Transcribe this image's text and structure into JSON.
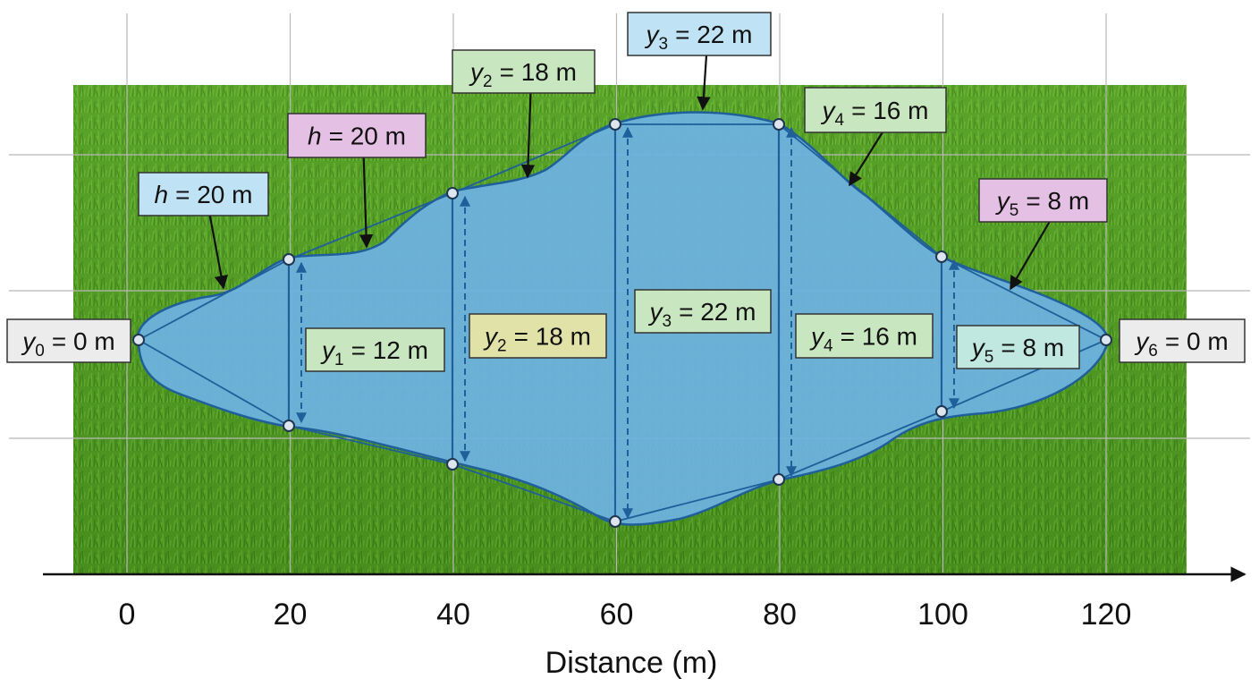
{
  "x_axis": {
    "label": "Distance (m)",
    "ticks": [
      0,
      20,
      40,
      60,
      80,
      100,
      120
    ]
  },
  "callouts": [
    {
      "symbol": "y",
      "subscript": "0",
      "text": "= 0 m"
    },
    {
      "symbol": "y",
      "subscript": "6",
      "text": "= 0 m"
    },
    {
      "symbol": "h",
      "text": "= 20 m"
    },
    {
      "symbol": "h",
      "text": "= 20 m"
    },
    {
      "symbol": "y",
      "subscript": "2",
      "text": "= 18 m"
    },
    {
      "symbol": "y",
      "subscript": "3",
      "text": "= 22 m"
    },
    {
      "symbol": "y",
      "subscript": "4",
      "text": "= 16 m"
    },
    {
      "symbol": "y",
      "subscript": "5",
      "text": "= 8 m"
    },
    {
      "symbol": "y",
      "subscript": "1",
      "text": "= 12 m"
    },
    {
      "symbol": "y",
      "subscript": "2",
      "text": "= 18 m"
    },
    {
      "symbol": "y",
      "subscript": "3",
      "text": "= 22 m"
    },
    {
      "symbol": "y",
      "subscript": "4",
      "text": "= 16 m"
    },
    {
      "symbol": "y",
      "subscript": "5",
      "text": "= 8 m"
    }
  ]
}
